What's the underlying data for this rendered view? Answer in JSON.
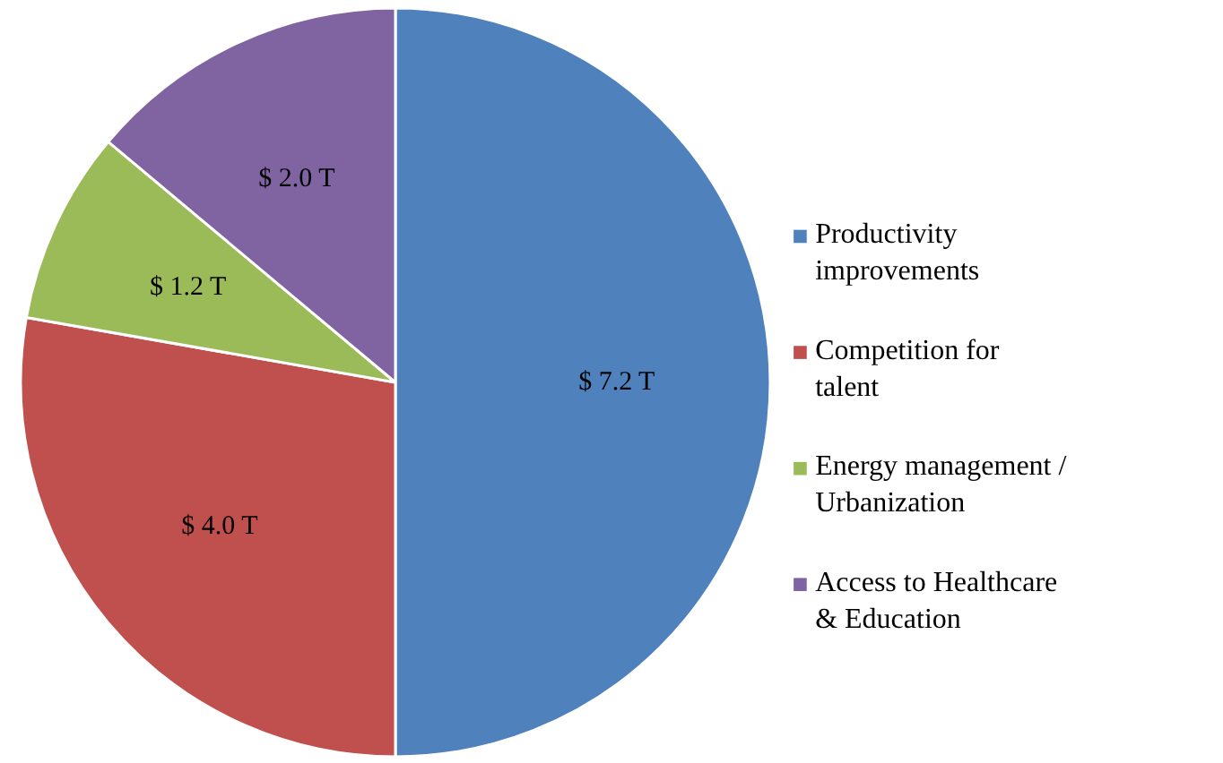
{
  "chart_data": {
    "type": "pie",
    "categories": [
      "Productivity improvements",
      "Competition for talent",
      "Energy management / Urbanization",
      "Access to Healthcare & Education"
    ],
    "values": [
      7.2,
      4.0,
      1.2,
      2.0
    ],
    "colors": [
      "#4f81bd",
      "#c0504d",
      "#9bbb59",
      "#8064a2"
    ],
    "value_labels": [
      "$ 7.2  T",
      "$ 4.0  T",
      "$ 1.2  T",
      "$ 2.0  T"
    ],
    "legend": "right"
  }
}
